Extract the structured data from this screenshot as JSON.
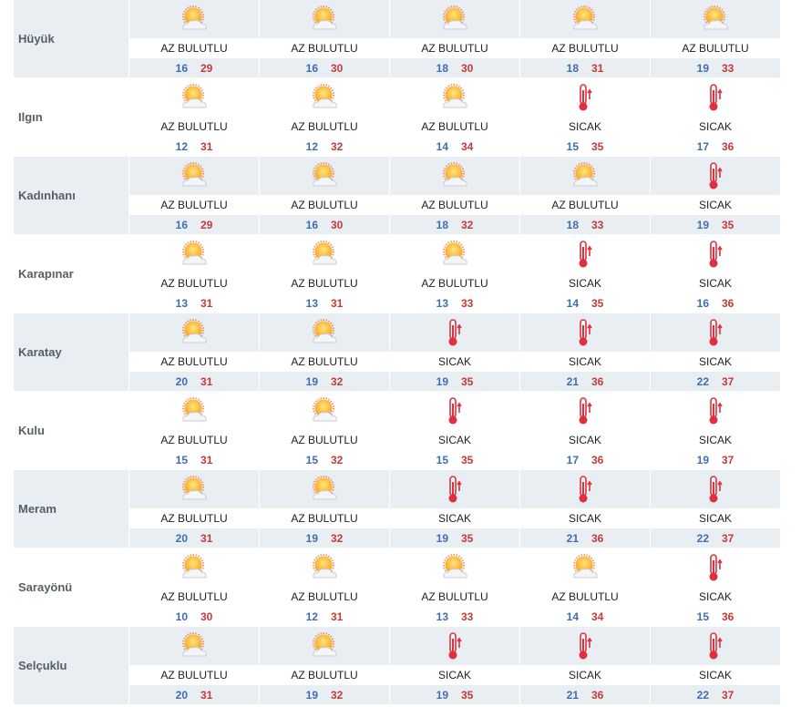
{
  "colors": {
    "low": "#3d6fb0",
    "high": "#c8383a",
    "shade": "#e9eef3"
  },
  "rows": [
    {
      "city": "Hüyük",
      "days": [
        {
          "icon": "partly-cloudy-icon",
          "label": "AZ BULUTLU",
          "low": "16",
          "high": "29"
        },
        {
          "icon": "partly-cloudy-icon",
          "label": "AZ BULUTLU",
          "low": "16",
          "high": "30"
        },
        {
          "icon": "partly-cloudy-icon",
          "label": "AZ BULUTLU",
          "low": "18",
          "high": "30"
        },
        {
          "icon": "partly-cloudy-icon",
          "label": "AZ BULUTLU",
          "low": "18",
          "high": "31"
        },
        {
          "icon": "partly-cloudy-icon",
          "label": "AZ BULUTLU",
          "low": "19",
          "high": "33"
        }
      ]
    },
    {
      "city": "Ilgın",
      "days": [
        {
          "icon": "partly-cloudy-icon",
          "label": "AZ BULUTLU",
          "low": "12",
          "high": "31"
        },
        {
          "icon": "partly-cloudy-icon",
          "label": "AZ BULUTLU",
          "low": "12",
          "high": "32"
        },
        {
          "icon": "partly-cloudy-icon",
          "label": "AZ BULUTLU",
          "low": "14",
          "high": "34"
        },
        {
          "icon": "thermometer-hot-icon",
          "label": "SICAK",
          "low": "15",
          "high": "35"
        },
        {
          "icon": "thermometer-hot-icon",
          "label": "SICAK",
          "low": "17",
          "high": "36"
        }
      ]
    },
    {
      "city": "Kadınhanı",
      "days": [
        {
          "icon": "partly-cloudy-icon",
          "label": "AZ BULUTLU",
          "low": "16",
          "high": "29"
        },
        {
          "icon": "partly-cloudy-icon",
          "label": "AZ BULUTLU",
          "low": "16",
          "high": "30"
        },
        {
          "icon": "partly-cloudy-icon",
          "label": "AZ BULUTLU",
          "low": "18",
          "high": "32"
        },
        {
          "icon": "partly-cloudy-icon",
          "label": "AZ BULUTLU",
          "low": "18",
          "high": "33"
        },
        {
          "icon": "thermometer-hot-icon",
          "label": "SICAK",
          "low": "19",
          "high": "35"
        }
      ]
    },
    {
      "city": "Karapınar",
      "days": [
        {
          "icon": "partly-cloudy-icon",
          "label": "AZ BULUTLU",
          "low": "13",
          "high": "31"
        },
        {
          "icon": "partly-cloudy-icon",
          "label": "AZ BULUTLU",
          "low": "13",
          "high": "31"
        },
        {
          "icon": "partly-cloudy-icon",
          "label": "AZ BULUTLU",
          "low": "13",
          "high": "33"
        },
        {
          "icon": "thermometer-hot-icon",
          "label": "SICAK",
          "low": "14",
          "high": "35"
        },
        {
          "icon": "thermometer-hot-icon",
          "label": "SICAK",
          "low": "16",
          "high": "36"
        }
      ]
    },
    {
      "city": "Karatay",
      "days": [
        {
          "icon": "partly-cloudy-icon",
          "label": "AZ BULUTLU",
          "low": "20",
          "high": "31"
        },
        {
          "icon": "partly-cloudy-icon",
          "label": "AZ BULUTLU",
          "low": "19",
          "high": "32"
        },
        {
          "icon": "thermometer-hot-icon",
          "label": "SICAK",
          "low": "19",
          "high": "35"
        },
        {
          "icon": "thermometer-hot-icon",
          "label": "SICAK",
          "low": "21",
          "high": "36"
        },
        {
          "icon": "thermometer-hot-icon",
          "label": "SICAK",
          "low": "22",
          "high": "37"
        }
      ]
    },
    {
      "city": "Kulu",
      "days": [
        {
          "icon": "partly-cloudy-icon",
          "label": "AZ BULUTLU",
          "low": "15",
          "high": "31"
        },
        {
          "icon": "partly-cloudy-icon",
          "label": "AZ BULUTLU",
          "low": "15",
          "high": "32"
        },
        {
          "icon": "thermometer-hot-icon",
          "label": "SICAK",
          "low": "15",
          "high": "35"
        },
        {
          "icon": "thermometer-hot-icon",
          "label": "SICAK",
          "low": "17",
          "high": "36"
        },
        {
          "icon": "thermometer-hot-icon",
          "label": "SICAK",
          "low": "19",
          "high": "37"
        }
      ]
    },
    {
      "city": "Meram",
      "days": [
        {
          "icon": "partly-cloudy-icon",
          "label": "AZ BULUTLU",
          "low": "20",
          "high": "31"
        },
        {
          "icon": "partly-cloudy-icon",
          "label": "AZ BULUTLU",
          "low": "19",
          "high": "32"
        },
        {
          "icon": "thermometer-hot-icon",
          "label": "SICAK",
          "low": "19",
          "high": "35"
        },
        {
          "icon": "thermometer-hot-icon",
          "label": "SICAK",
          "low": "21",
          "high": "36"
        },
        {
          "icon": "thermometer-hot-icon",
          "label": "SICAK",
          "low": "22",
          "high": "37"
        }
      ]
    },
    {
      "city": "Sarayönü",
      "days": [
        {
          "icon": "partly-cloudy-icon",
          "label": "AZ BULUTLU",
          "low": "10",
          "high": "30"
        },
        {
          "icon": "partly-cloudy-icon",
          "label": "AZ BULUTLU",
          "low": "12",
          "high": "31"
        },
        {
          "icon": "partly-cloudy-icon",
          "label": "AZ BULUTLU",
          "low": "13",
          "high": "33"
        },
        {
          "icon": "partly-cloudy-icon",
          "label": "AZ BULUTLU",
          "low": "14",
          "high": "34"
        },
        {
          "icon": "thermometer-hot-icon",
          "label": "SICAK",
          "low": "15",
          "high": "36"
        }
      ]
    },
    {
      "city": "Selçuklu",
      "days": [
        {
          "icon": "partly-cloudy-icon",
          "label": "AZ BULUTLU",
          "low": "20",
          "high": "31"
        },
        {
          "icon": "partly-cloudy-icon",
          "label": "AZ BULUTLU",
          "low": "19",
          "high": "32"
        },
        {
          "icon": "thermometer-hot-icon",
          "label": "SICAK",
          "low": "19",
          "high": "35"
        },
        {
          "icon": "thermometer-hot-icon",
          "label": "SICAK",
          "low": "21",
          "high": "36"
        },
        {
          "icon": "thermometer-hot-icon",
          "label": "SICAK",
          "low": "22",
          "high": "37"
        }
      ]
    }
  ]
}
